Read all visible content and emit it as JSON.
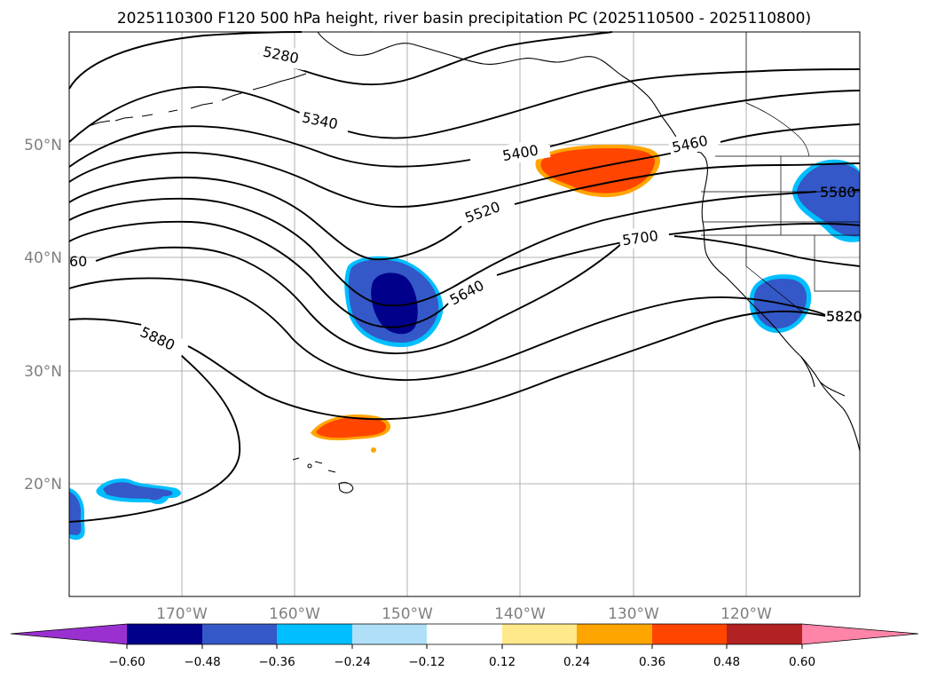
{
  "title": "2025110300 F120 500 hPa height, river basin precipitation PC (2025110500 - 2025110800)",
  "lat_labels": [
    "50°N",
    "40°N",
    "30°N",
    "20°N"
  ],
  "lon_labels": [
    "170°W",
    "160°W",
    "150°W",
    "140°W",
    "130°W",
    "120°W"
  ],
  "contour_labels": [
    "5280",
    "5340",
    "5400",
    "5460",
    "5520",
    "5580",
    "5640",
    "5700",
    "5820",
    "5880",
    "60"
  ],
  "colorbar": {
    "ticks": [
      "−0.60",
      "−0.48",
      "−0.36",
      "−0.24",
      "−0.12",
      "0.12",
      "0.24",
      "0.36",
      "0.48",
      "0.60"
    ],
    "colors": [
      "#9b30d0",
      "#00008b",
      "#3458c8",
      "#00bfff",
      "#b0e0f8",
      "#ffffff",
      "#ffe98a",
      "#ffa500",
      "#ff4500",
      "#b22222",
      "#ff85a8"
    ]
  },
  "colors": {
    "strong_negative": "#00008b",
    "negative": "#3458c8",
    "weak_negative": "#00bfff",
    "positive": "#ff4500",
    "weak_positive": "#ffa500"
  }
}
